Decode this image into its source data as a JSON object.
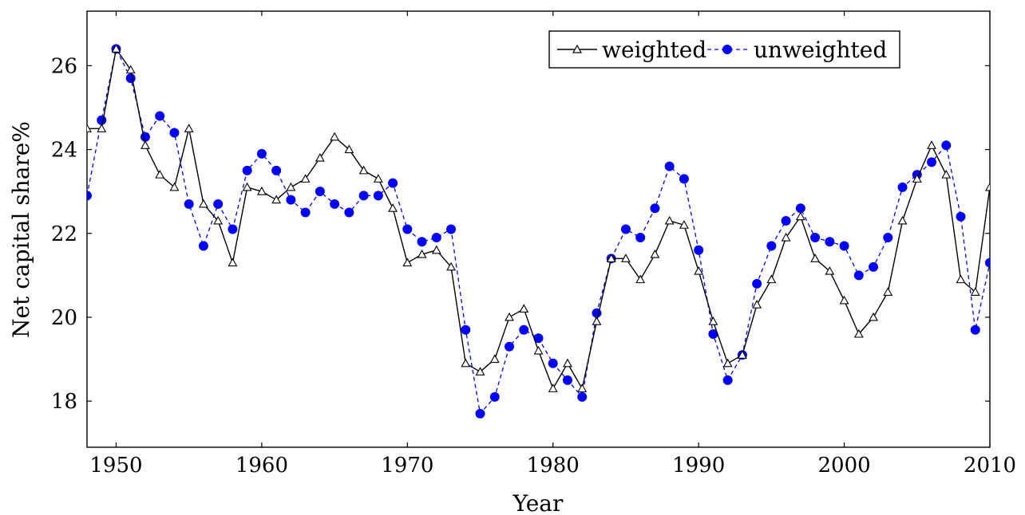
{
  "chart_data": {
    "type": "line",
    "title": "",
    "xlabel": "Year",
    "ylabel": "Net capital share%",
    "xlim": [
      1948,
      2010
    ],
    "ylim": [
      16.9,
      27.3
    ],
    "xticks": [
      1950,
      1960,
      1970,
      1980,
      1990,
      2000,
      2010
    ],
    "yticks": [
      18,
      20,
      22,
      24,
      26
    ],
    "grid": false,
    "legend_position": "top-right",
    "x": [
      1948,
      1949,
      1950,
      1951,
      1952,
      1953,
      1954,
      1955,
      1956,
      1957,
      1958,
      1959,
      1960,
      1961,
      1962,
      1963,
      1964,
      1965,
      1966,
      1967,
      1968,
      1969,
      1970,
      1971,
      1972,
      1973,
      1974,
      1975,
      1976,
      1977,
      1978,
      1979,
      1980,
      1981,
      1982,
      1983,
      1984,
      1985,
      1986,
      1987,
      1988,
      1989,
      1990,
      1991,
      1992,
      1993,
      1994,
      1995,
      1996,
      1997,
      1998,
      1999,
      2000,
      2001,
      2002,
      2003,
      2004,
      2005,
      2006,
      2007,
      2008,
      2009,
      2010
    ],
    "series": [
      {
        "name": "weighted",
        "color": "#000000",
        "marker": "triangle-open",
        "line_style": "solid",
        "values": [
          24.5,
          24.5,
          26.4,
          25.9,
          24.1,
          23.4,
          23.1,
          24.5,
          22.7,
          22.3,
          21.3,
          23.1,
          23.0,
          22.8,
          23.1,
          23.3,
          23.8,
          24.3,
          24.0,
          23.5,
          23.3,
          22.6,
          21.3,
          21.5,
          21.6,
          21.2,
          18.9,
          18.7,
          19.0,
          20.0,
          20.2,
          19.2,
          18.3,
          18.9,
          18.3,
          19.9,
          21.4,
          21.4,
          20.9,
          21.5,
          22.3,
          22.2,
          21.1,
          19.9,
          18.9,
          19.1,
          20.3,
          20.9,
          21.9,
          22.4,
          21.4,
          21.1,
          20.4,
          19.6,
          20.0,
          20.6,
          22.3,
          23.3,
          24.1,
          23.4,
          20.9,
          20.6,
          23.1
        ]
      },
      {
        "name": "unweighted",
        "color": "#0000ff",
        "marker": "circle-filled",
        "line_style": "dashed",
        "values": [
          22.9,
          24.7,
          26.4,
          25.7,
          24.3,
          24.8,
          24.4,
          22.7,
          21.7,
          22.7,
          22.1,
          23.5,
          23.9,
          23.5,
          22.8,
          22.5,
          23.0,
          22.7,
          22.5,
          22.9,
          22.9,
          23.2,
          22.1,
          21.8,
          21.9,
          22.1,
          19.7,
          17.7,
          18.1,
          19.3,
          19.7,
          19.5,
          18.9,
          18.5,
          18.1,
          20.1,
          21.4,
          22.1,
          21.9,
          22.6,
          23.6,
          23.3,
          21.6,
          19.6,
          18.5,
          19.1,
          20.8,
          21.7,
          22.3,
          22.6,
          21.9,
          21.8,
          21.7,
          21.0,
          21.2,
          21.9,
          23.1,
          23.4,
          23.7,
          24.1,
          22.4,
          19.7,
          21.3
        ]
      }
    ]
  }
}
